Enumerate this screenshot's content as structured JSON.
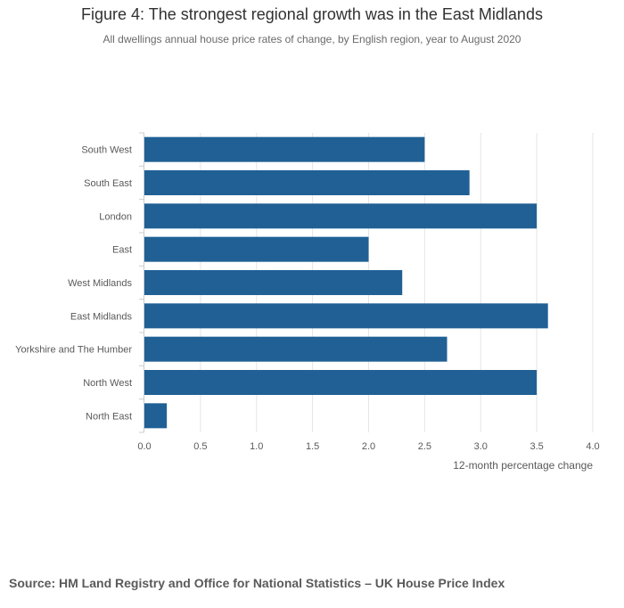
{
  "title": "Figure 4: The strongest regional growth was in the East Midlands",
  "subtitle": "All dwellings annual house price rates of change, by English region, year to August 2020",
  "source": "Source: HM Land Registry and Office for National Statistics – UK House Price Index",
  "colors": {
    "bar": "#206095",
    "grid": "#e5e5e5",
    "axis": "#cccccc"
  },
  "chart_data": {
    "type": "bar",
    "orientation": "horizontal",
    "title": "Figure 4: The strongest regional growth was in the East Midlands",
    "subtitle": "All dwellings annual house price rates of change, by English region, year to August 2020",
    "xlabel": "12-month percentage change",
    "ylabel": "",
    "xlim": [
      0,
      4.0
    ],
    "xticks": [
      "0.0",
      "0.5",
      "1.0",
      "1.5",
      "2.0",
      "2.5",
      "3.0",
      "3.5",
      "4.0"
    ],
    "grid": true,
    "categories": [
      "South West",
      "South East",
      "London",
      "East",
      "West Midlands",
      "East Midlands",
      "Yorkshire and The Humber",
      "North West",
      "North East"
    ],
    "values": [
      2.5,
      2.9,
      3.5,
      2.0,
      2.3,
      3.6,
      2.7,
      3.5,
      0.2
    ]
  }
}
